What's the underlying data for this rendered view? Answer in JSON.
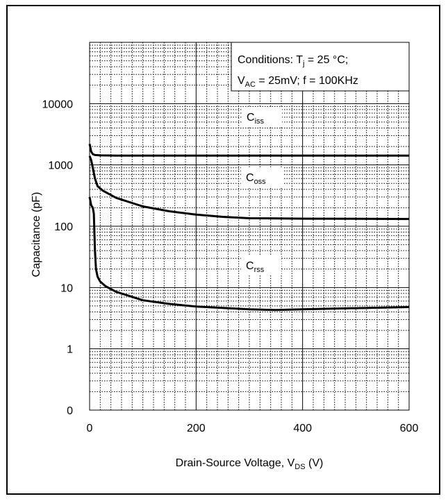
{
  "chart_data": {
    "type": "line",
    "title": "",
    "xlabel": {
      "main": "Drain-Source Voltage,  V",
      "sub": "DS",
      "unit": " (V)"
    },
    "ylabel": "Capacitance (pF)",
    "x_scale": "linear",
    "y_scale": "log",
    "xlim": [
      0,
      600
    ],
    "ylim": [
      0.1,
      100000
    ],
    "x_ticks": [
      {
        "value": 0,
        "label": "0"
      },
      {
        "value": 200,
        "label": "200"
      },
      {
        "value": 400,
        "label": "400"
      },
      {
        "value": 600,
        "label": "600"
      }
    ],
    "y_ticks": [
      {
        "value": 0.1,
        "label": "0"
      },
      {
        "value": 1,
        "label": "1"
      },
      {
        "value": 10,
        "label": "10"
      },
      {
        "value": 100,
        "label": "100"
      },
      {
        "value": 1000,
        "label": "1000"
      },
      {
        "value": 10000,
        "label": "10000"
      }
    ],
    "grid": true,
    "series": [
      {
        "name": "Ciss",
        "label_main": "C",
        "label_sub": "iss",
        "x": [
          0,
          3,
          6,
          10,
          20,
          50,
          100,
          200,
          300,
          400,
          500,
          600
        ],
        "y": [
          2200,
          1650,
          1500,
          1450,
          1430,
          1420,
          1420,
          1420,
          1420,
          1420,
          1420,
          1420
        ]
      },
      {
        "name": "Coss",
        "label_main": "C",
        "label_sub": "oss",
        "x": [
          0,
          3,
          6,
          10,
          15,
          25,
          50,
          100,
          150,
          200,
          250,
          300,
          350,
          400,
          500,
          600
        ],
        "y": [
          1400,
          1200,
          900,
          600,
          450,
          380,
          290,
          210,
          175,
          155,
          142,
          135,
          134,
          133,
          132,
          131
        ]
      },
      {
        "name": "Crss",
        "label_main": "C",
        "label_sub": "rss",
        "x": [
          0,
          3,
          6,
          8,
          10,
          12,
          15,
          20,
          30,
          50,
          100,
          150,
          200,
          300,
          350,
          400,
          500,
          600
        ],
        "y": [
          300,
          220,
          200,
          160,
          40,
          20,
          15,
          12.5,
          10.5,
          8.5,
          6.2,
          5.4,
          4.9,
          4.4,
          4.3,
          4.4,
          4.6,
          4.8
        ]
      }
    ],
    "conditions": {
      "line1": {
        "prefix": "Conditions:  T",
        "sub": "j",
        "suffix": " = 25 °C;"
      },
      "line2": {
        "v": "V",
        "vsub": "AC",
        "rest": " = 25mV;  f = 100KHz"
      }
    }
  }
}
